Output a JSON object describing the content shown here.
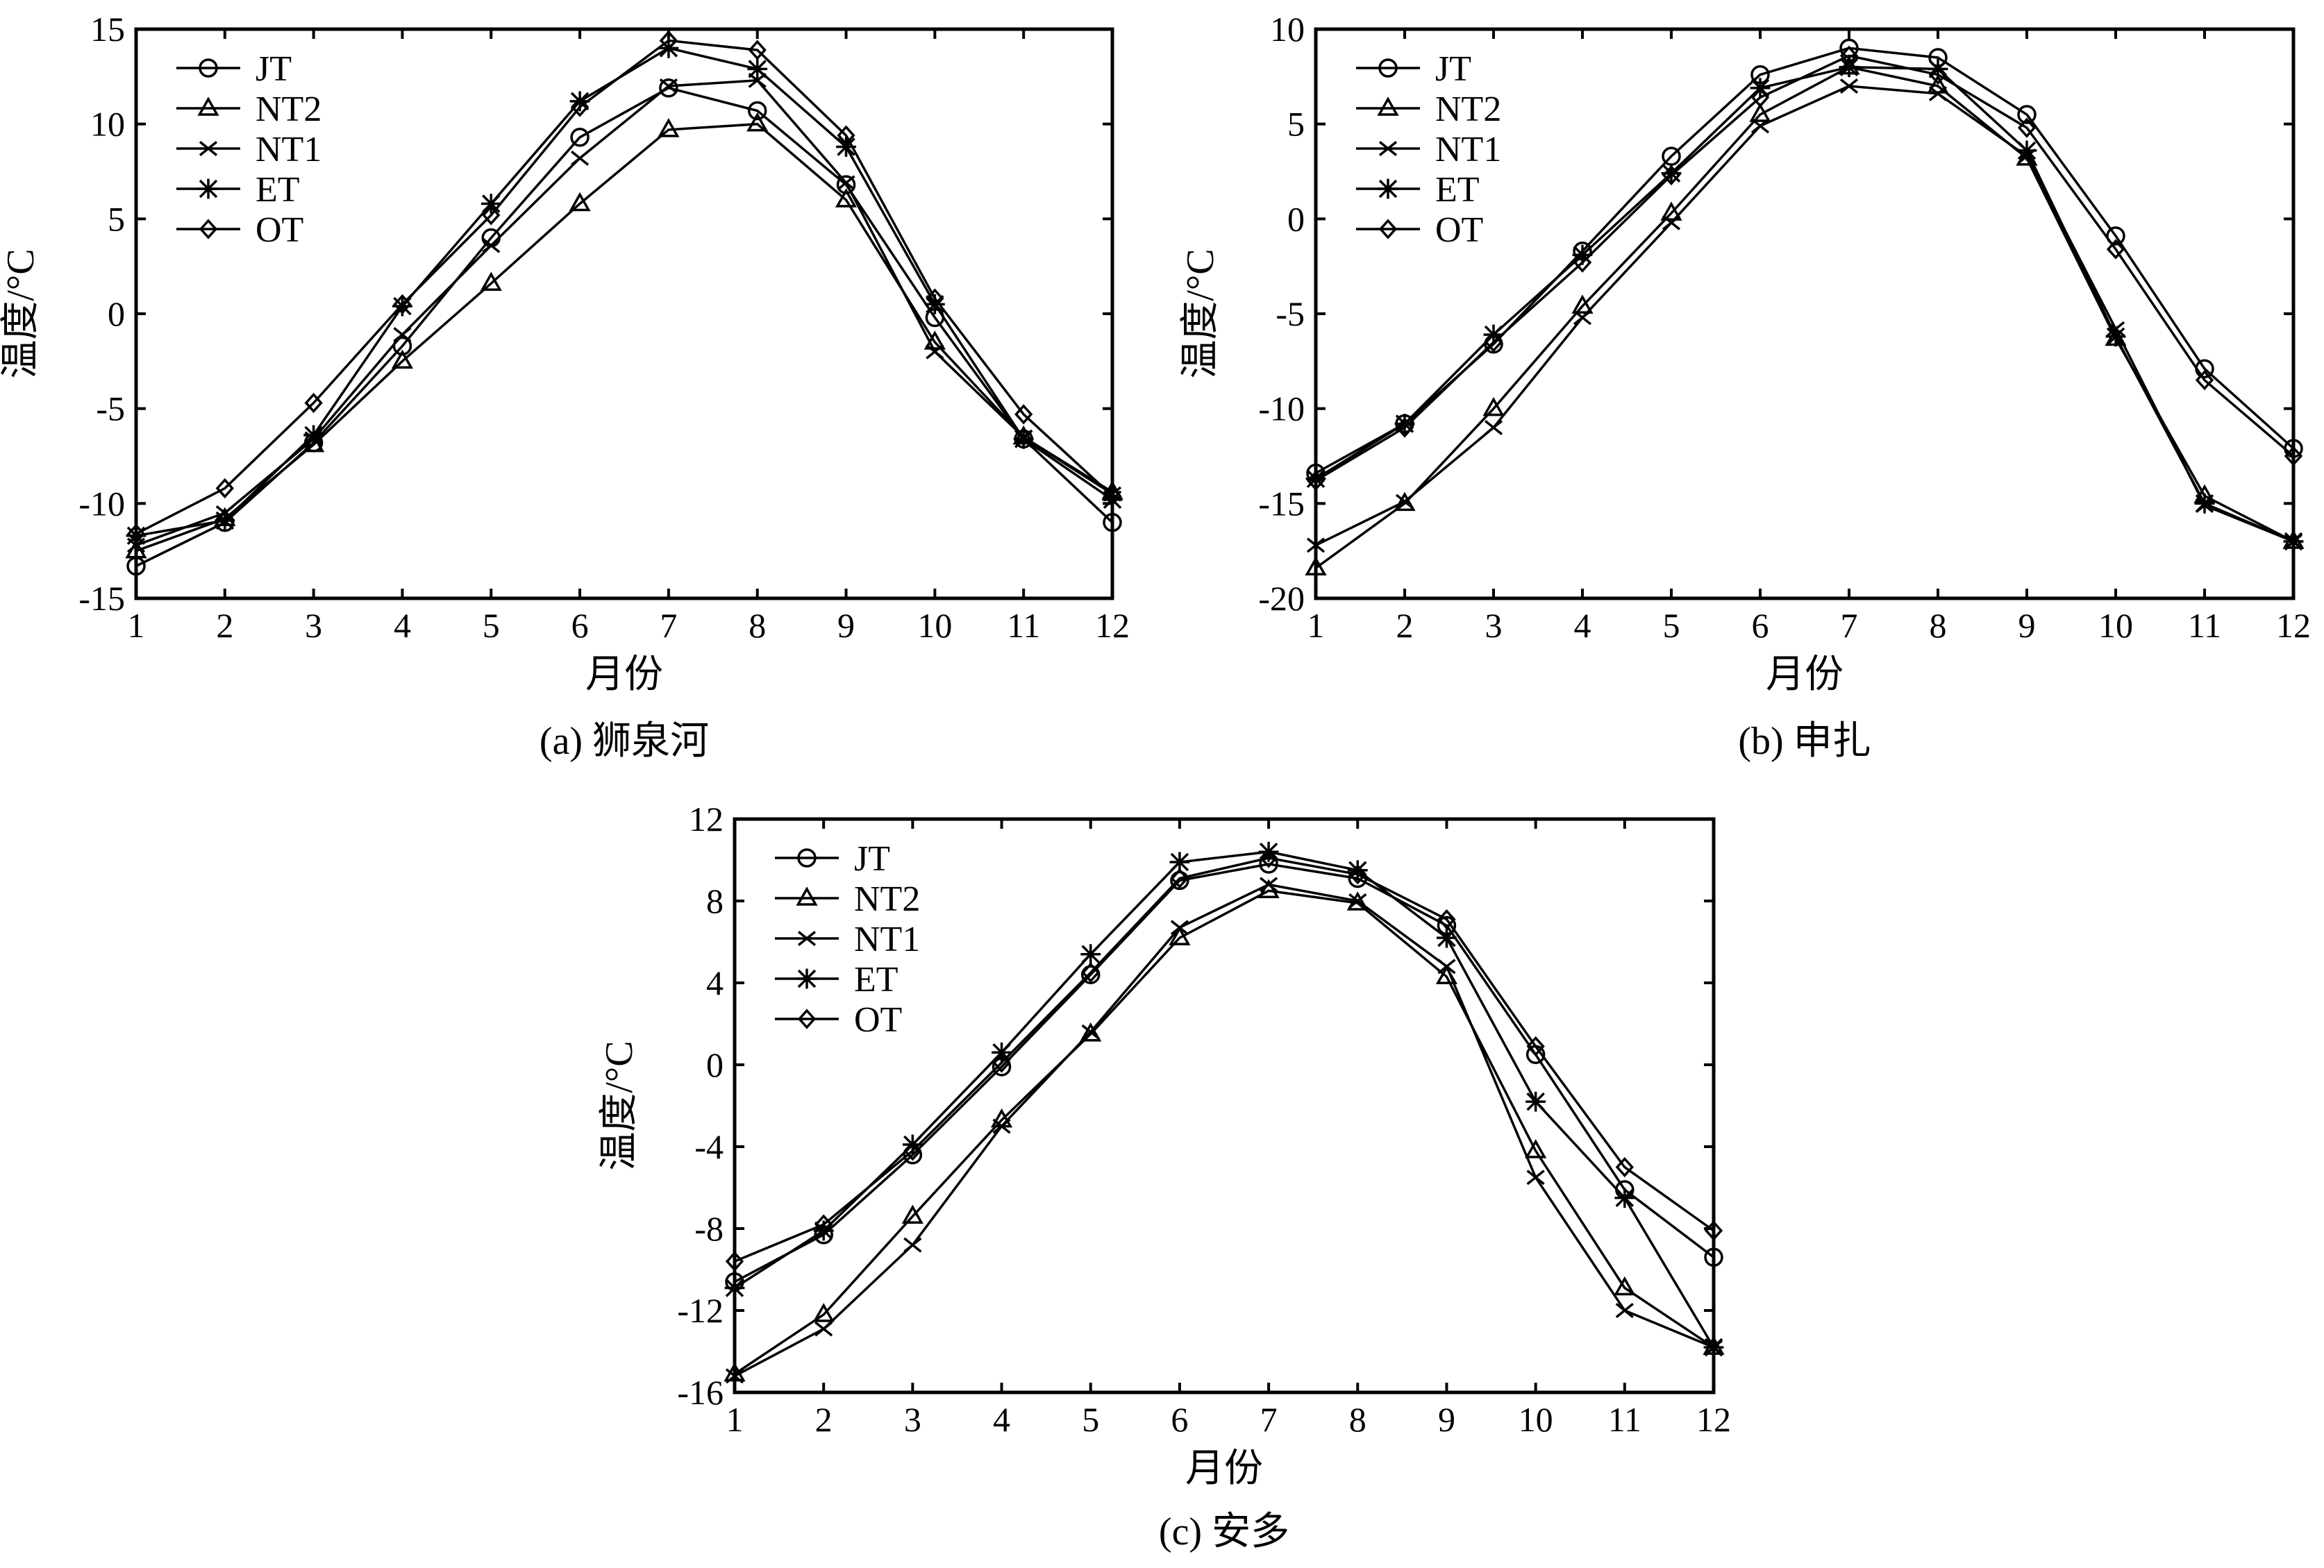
{
  "chart_data": [
    {
      "type": "line",
      "caption": "(a) 狮泉河",
      "xlabel": "月份",
      "ylabel": "温度/°C",
      "x": [
        1,
        2,
        3,
        4,
        5,
        6,
        7,
        8,
        9,
        10,
        11,
        12
      ],
      "xticks": [
        "1",
        "2",
        "3",
        "4",
        "5",
        "6",
        "7",
        "8",
        "9",
        "10",
        "11",
        "12"
      ],
      "ylim": [
        -15,
        15
      ],
      "yticks": [
        -15,
        -10,
        -5,
        0,
        5,
        10,
        15
      ],
      "ytick_labels": [
        "-15",
        "-10",
        "-5",
        "0",
        "5",
        "10",
        "15"
      ],
      "grid": false,
      "legend": "top-left",
      "series": [
        {
          "name": "JT",
          "marker": "circle",
          "values": [
            -13.3,
            -11.0,
            -6.8,
            -1.7,
            4.0,
            9.3,
            11.9,
            10.7,
            6.8,
            -0.2,
            -6.6,
            -11.0
          ]
        },
        {
          "name": "NT2",
          "marker": "triangle",
          "values": [
            -12.5,
            -10.8,
            -6.9,
            -2.5,
            1.6,
            5.8,
            9.7,
            10.0,
            6.0,
            -1.5,
            -6.5,
            -9.4
          ]
        },
        {
          "name": "NT1",
          "marker": "x",
          "values": [
            -12.2,
            -10.5,
            -6.6,
            -1.1,
            3.6,
            8.2,
            12.0,
            12.3,
            6.9,
            -2.0,
            -6.5,
            -9.5
          ]
        },
        {
          "name": "ET",
          "marker": "star",
          "values": [
            -11.7,
            -10.9,
            -6.4,
            0.4,
            5.8,
            11.2,
            14.0,
            12.9,
            8.8,
            0.5,
            -6.6,
            -9.8
          ]
        },
        {
          "name": "OT",
          "marker": "diamond",
          "values": [
            -11.6,
            -9.2,
            -4.7,
            0.5,
            5.2,
            10.9,
            14.4,
            13.9,
            9.4,
            0.8,
            -5.3,
            -9.6
          ]
        }
      ]
    },
    {
      "type": "line",
      "caption": "(b) 申扎",
      "xlabel": "月份",
      "ylabel": "温度/°C",
      "x": [
        1,
        2,
        3,
        4,
        5,
        6,
        7,
        8,
        9,
        10,
        11,
        12
      ],
      "xticks": [
        "1",
        "2",
        "3",
        "4",
        "5",
        "6",
        "7",
        "8",
        "9",
        "10",
        "11",
        "12"
      ],
      "ylim": [
        -20,
        10
      ],
      "yticks": [
        -20,
        -15,
        -10,
        -5,
        0,
        5,
        10
      ],
      "ytick_labels": [
        "-20",
        "-15",
        "-10",
        "-5",
        "0",
        "5",
        "10"
      ],
      "grid": false,
      "legend": "top-left",
      "series": [
        {
          "name": "JT",
          "marker": "circle",
          "values": [
            -13.4,
            -10.8,
            -6.6,
            -1.7,
            3.3,
            7.6,
            9.0,
            8.5,
            5.5,
            -0.9,
            -7.9,
            -12.1
          ]
        },
        {
          "name": "NT2",
          "marker": "triangle",
          "values": [
            -18.4,
            -15.0,
            -10.0,
            -4.6,
            0.3,
            5.5,
            8.0,
            7.0,
            3.2,
            -6.3,
            -14.6,
            -17.0
          ]
        },
        {
          "name": "NT1",
          "marker": "x",
          "values": [
            -17.2,
            -14.9,
            -11.0,
            -5.2,
            -0.2,
            4.9,
            7.0,
            6.6,
            3.3,
            -5.8,
            -15.1,
            -17.0
          ]
        },
        {
          "name": "ET",
          "marker": "star",
          "values": [
            -13.7,
            -10.8,
            -6.1,
            -1.9,
            2.4,
            6.9,
            8.0,
            7.9,
            3.6,
            -6.2,
            -15.0,
            -17.0
          ]
        },
        {
          "name": "OT",
          "marker": "diamond",
          "values": [
            -13.8,
            -11.0,
            -6.5,
            -2.3,
            2.3,
            6.4,
            8.6,
            7.6,
            4.8,
            -1.6,
            -8.5,
            -12.5
          ]
        }
      ]
    },
    {
      "type": "line",
      "caption": "(c) 安多",
      "xlabel": "月份",
      "ylabel": "温度/°C",
      "x": [
        1,
        2,
        3,
        4,
        5,
        6,
        7,
        8,
        9,
        10,
        11,
        12
      ],
      "xticks": [
        "1",
        "2",
        "3",
        "4",
        "5",
        "6",
        "7",
        "8",
        "9",
        "10",
        "11",
        "12"
      ],
      "ylim": [
        -16,
        12
      ],
      "yticks": [
        -16,
        -12,
        -8,
        -4,
        0,
        4,
        8,
        12
      ],
      "ytick_labels": [
        "-16",
        "-12",
        "-8",
        "-4",
        "0",
        "4",
        "8",
        "12"
      ],
      "grid": false,
      "legend": "top-left",
      "series": [
        {
          "name": "JT",
          "marker": "circle",
          "values": [
            -10.6,
            -8.3,
            -4.4,
            -0.1,
            4.4,
            9.0,
            9.8,
            9.1,
            6.8,
            0.5,
            -6.1,
            -9.4
          ]
        },
        {
          "name": "NT2",
          "marker": "triangle",
          "values": [
            -15.1,
            -12.2,
            -7.4,
            -2.7,
            1.5,
            6.2,
            8.5,
            7.9,
            4.3,
            -4.2,
            -10.9,
            -13.8
          ]
        },
        {
          "name": "NT1",
          "marker": "x",
          "values": [
            -15.2,
            -12.9,
            -8.8,
            -3.0,
            1.6,
            6.7,
            8.8,
            8.0,
            4.8,
            -5.5,
            -12.0,
            -13.8
          ]
        },
        {
          "name": "ET",
          "marker": "star",
          "values": [
            -10.9,
            -8.1,
            -3.9,
            0.6,
            5.4,
            9.9,
            10.4,
            9.5,
            6.2,
            -1.8,
            -6.5,
            -13.8
          ]
        },
        {
          "name": "OT",
          "marker": "diamond",
          "values": [
            -9.6,
            -7.8,
            -4.2,
            0.1,
            4.5,
            9.1,
            10.1,
            9.3,
            7.1,
            0.9,
            -5.0,
            -8.1
          ]
        }
      ]
    }
  ]
}
